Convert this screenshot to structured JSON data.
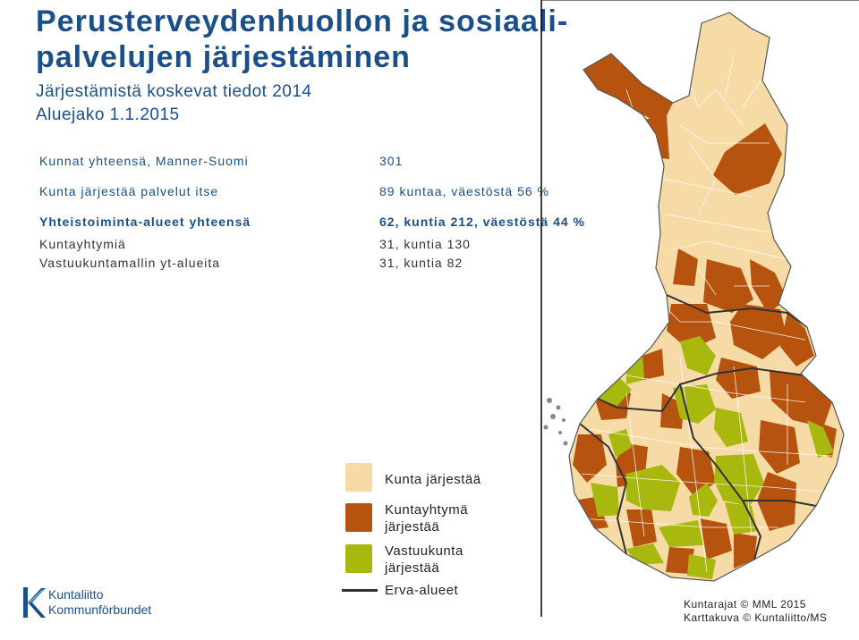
{
  "header": {
    "title_line1": "Perusterveydenhuollon ja sosiaali-",
    "title_line2": "palvelujen järjestäminen",
    "subtitle_line1": "Järjestämistä koskevat tiedot 2014",
    "subtitle_line2": "Aluejako 1.1.2015"
  },
  "stats": [
    {
      "label": "Kunnat yhteensä, Manner-Suomi",
      "value": "301"
    },
    {
      "label": "Kunta järjestää palvelut itse",
      "value": "89 kuntaa, väestöstä 56 %"
    },
    {
      "label": "Yhteistoiminta-alueet yhteensä",
      "value": "62, kuntia 212, väestöstä 44 %"
    },
    {
      "label": "Kuntayhtymiä",
      "value": "31, kuntia 130"
    },
    {
      "label": "Vastuukuntamallin yt-alueita",
      "value": "31, kuntia 82"
    }
  ],
  "legend": {
    "items": [
      {
        "label": "Kunta järjestää",
        "color": "#f7dba7"
      },
      {
        "label_line1": "Kuntayhtymä",
        "label_line2": "järjestää",
        "color": "#b5530f"
      },
      {
        "label_line1": "Vastuukunta",
        "label_line2": "järjestää",
        "color": "#a9b80e"
      }
    ],
    "erva_label": "Erva-alueet"
  },
  "credits": {
    "line1": "Kuntarajat © MML 2015",
    "line2": "Karttakuva © Kuntaliitto/MS"
  },
  "logo": {
    "line1": "Kuntaliitto",
    "line2": "Kommunförbundet",
    "color": "#1b4f8a"
  },
  "colors": {
    "light": "#f7dba7",
    "brown": "#b5530f",
    "green": "#a9b80e",
    "title": "#1b4f8a"
  }
}
